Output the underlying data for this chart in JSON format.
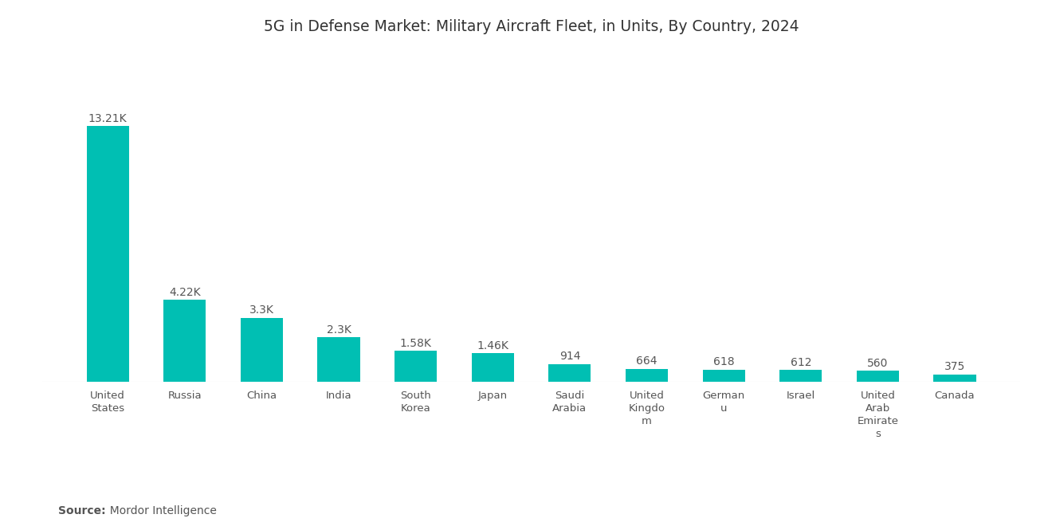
{
  "title": "5G in Defense Market: Military Aircraft Fleet, in Units, By Country, 2024",
  "categories": [
    "United\nStates",
    "Russia",
    "China",
    "India",
    "South\nKorea",
    "Japan",
    "Saudi\nArabia",
    "United\nKingdo\nm",
    "German\nu",
    "Israel",
    "United\nArab\nEmirate\ns",
    "Canada"
  ],
  "values": [
    13210,
    4220,
    3300,
    2300,
    1580,
    1460,
    914,
    664,
    618,
    612,
    560,
    375
  ],
  "labels": [
    "13.21K",
    "4.22K",
    "3.3K",
    "2.3K",
    "1.58K",
    "1.46K",
    "914",
    "664",
    "618",
    "612",
    "560",
    "375"
  ],
  "bar_color": "#00BFB3",
  "background_color": "#ffffff",
  "title_fontsize": 13.5,
  "source_label": "Source:",
  "source_value": "  Mordor Intelligence",
  "ylim": [
    0,
    17000
  ]
}
